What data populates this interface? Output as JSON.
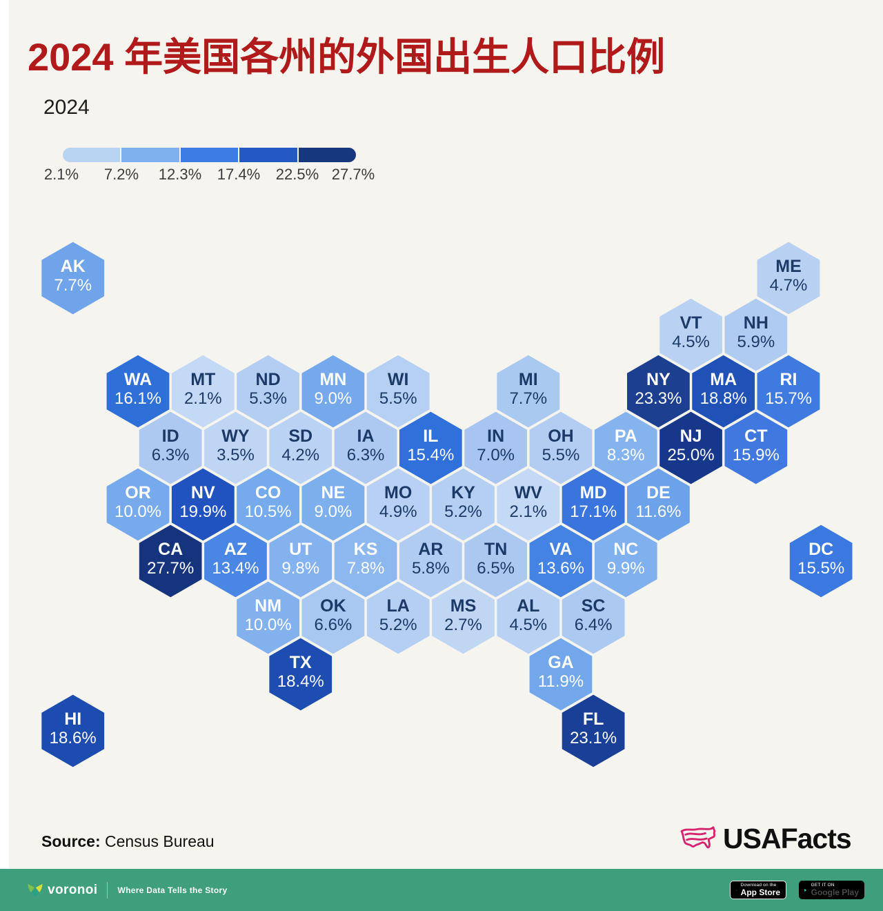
{
  "title": "2024 年美国各州的外国出生人口比例",
  "subtitle": "2024",
  "colors": {
    "background": "#f5f4ee",
    "title_red": "#b01a1a",
    "footer_green": "#3f9f7c",
    "dark_text": "#1b3a68",
    "light_text": "#ffffff",
    "usafacts_pink": "#d6246e"
  },
  "legend": {
    "labels": [
      "2.1%",
      "7.2%",
      "12.3%",
      "17.4%",
      "22.5%",
      "27.7%"
    ],
    "segments": [
      "#b9d3f3",
      "#7fb0ee",
      "#3c7ce3",
      "#2458c2",
      "#17377d"
    ]
  },
  "source": {
    "prefix": "Source:",
    "text": " Census Bureau"
  },
  "brand": {
    "name": "USAFacts"
  },
  "footer": {
    "brand": "voronoi",
    "tagline": "Where Data Tells the Story",
    "appstore_line1": "Download on the",
    "appstore_line2": "App Store",
    "gplay_line1": "GET IT ON",
    "gplay_line2": "Google Play"
  },
  "chart_data": {
    "type": "hexmap",
    "title": "2024 年美国各州的外国出生人口比例",
    "unit": "%",
    "legend_labels": [
      "2.1%",
      "7.2%",
      "12.3%",
      "17.4%",
      "22.5%",
      "27.7%"
    ],
    "states": [
      {
        "abbr": "AK",
        "value": "7.7%",
        "row": 0,
        "col": -1,
        "fill": "#6fa3ea",
        "text": "light"
      },
      {
        "abbr": "ME",
        "value": "4.7%",
        "row": 0,
        "col": 10,
        "fill": "#b8d1f3",
        "text": "dark"
      },
      {
        "abbr": "VT",
        "value": "4.5%",
        "row": 1,
        "col": 8,
        "fill": "#b9d2f3",
        "text": "dark"
      },
      {
        "abbr": "NH",
        "value": "5.9%",
        "row": 1,
        "col": 9,
        "fill": "#b0cbf2",
        "text": "dark"
      },
      {
        "abbr": "WA",
        "value": "16.1%",
        "row": 2,
        "col": 0,
        "fill": "#2e6fd8",
        "text": "light"
      },
      {
        "abbr": "MT",
        "value": "2.1%",
        "row": 2,
        "col": 1,
        "fill": "#c3d9f5",
        "text": "dark"
      },
      {
        "abbr": "ND",
        "value": "5.3%",
        "row": 2,
        "col": 2,
        "fill": "#b4cef2",
        "text": "dark"
      },
      {
        "abbr": "MN",
        "value": "9.0%",
        "row": 2,
        "col": 3,
        "fill": "#76a9ec",
        "text": "light"
      },
      {
        "abbr": "WI",
        "value": "5.5%",
        "row": 2,
        "col": 4,
        "fill": "#b6d0f3",
        "text": "dark"
      },
      {
        "abbr": "MI",
        "value": "7.7%",
        "row": 2,
        "col": 6,
        "fill": "#a9c9f1",
        "text": "dark"
      },
      {
        "abbr": "NY",
        "value": "23.3%",
        "row": 2,
        "col": 8,
        "fill": "#1c3f90",
        "text": "light"
      },
      {
        "abbr": "MA",
        "value": "18.8%",
        "row": 2,
        "col": 9,
        "fill": "#1f51b7",
        "text": "light"
      },
      {
        "abbr": "RI",
        "value": "15.7%",
        "row": 2,
        "col": 10,
        "fill": "#3e7ae0",
        "text": "light"
      },
      {
        "abbr": "ID",
        "value": "6.3%",
        "row": 3,
        "col": 0,
        "fill": "#adc9f1",
        "text": "dark"
      },
      {
        "abbr": "WY",
        "value": "3.5%",
        "row": 3,
        "col": 1,
        "fill": "#bed5f4",
        "text": "dark"
      },
      {
        "abbr": "SD",
        "value": "4.2%",
        "row": 3,
        "col": 2,
        "fill": "#bad2f3",
        "text": "dark"
      },
      {
        "abbr": "IA",
        "value": "6.3%",
        "row": 3,
        "col": 3,
        "fill": "#adc9f1",
        "text": "dark"
      },
      {
        "abbr": "IL",
        "value": "15.4%",
        "row": 3,
        "col": 4,
        "fill": "#2f70da",
        "text": "light"
      },
      {
        "abbr": "IN",
        "value": "7.0%",
        "row": 3,
        "col": 5,
        "fill": "#a7c5f0",
        "text": "dark"
      },
      {
        "abbr": "OH",
        "value": "5.5%",
        "row": 3,
        "col": 6,
        "fill": "#b3cdf2",
        "text": "dark"
      },
      {
        "abbr": "PA",
        "value": "8.3%",
        "row": 3,
        "col": 7,
        "fill": "#85b3ee",
        "text": "light"
      },
      {
        "abbr": "NJ",
        "value": "25.0%",
        "row": 3,
        "col": 8,
        "fill": "#17378a",
        "text": "light"
      },
      {
        "abbr": "CT",
        "value": "15.9%",
        "row": 3,
        "col": 9,
        "fill": "#4078e0",
        "text": "light"
      },
      {
        "abbr": "OR",
        "value": "10.0%",
        "row": 4,
        "col": 0,
        "fill": "#77aaec",
        "text": "light"
      },
      {
        "abbr": "NV",
        "value": "19.9%",
        "row": 4,
        "col": 1,
        "fill": "#2153c0",
        "text": "light"
      },
      {
        "abbr": "CO",
        "value": "10.5%",
        "row": 4,
        "col": 2,
        "fill": "#75aaec",
        "text": "light"
      },
      {
        "abbr": "NE",
        "value": "9.0%",
        "row": 4,
        "col": 3,
        "fill": "#7dafed",
        "text": "light"
      },
      {
        "abbr": "MO",
        "value": "4.9%",
        "row": 4,
        "col": 4,
        "fill": "#b7d0f3",
        "text": "dark"
      },
      {
        "abbr": "KY",
        "value": "5.2%",
        "row": 4,
        "col": 5,
        "fill": "#b5cff2",
        "text": "dark"
      },
      {
        "abbr": "WV",
        "value": "2.1%",
        "row": 4,
        "col": 6,
        "fill": "#c3d9f5",
        "text": "dark"
      },
      {
        "abbr": "MD",
        "value": "17.1%",
        "row": 4,
        "col": 7,
        "fill": "#3a75de",
        "text": "light"
      },
      {
        "abbr": "DE",
        "value": "11.6%",
        "row": 4,
        "col": 8,
        "fill": "#6ba2ea",
        "text": "light"
      },
      {
        "abbr": "CA",
        "value": "27.7%",
        "row": 5,
        "col": 0,
        "fill": "#16347d",
        "text": "light"
      },
      {
        "abbr": "AZ",
        "value": "13.4%",
        "row": 5,
        "col": 1,
        "fill": "#4a86e4",
        "text": "light"
      },
      {
        "abbr": "UT",
        "value": "9.8%",
        "row": 5,
        "col": 2,
        "fill": "#84b2ee",
        "text": "light"
      },
      {
        "abbr": "KS",
        "value": "7.8%",
        "row": 5,
        "col": 3,
        "fill": "#8db8ef",
        "text": "light"
      },
      {
        "abbr": "AR",
        "value": "5.8%",
        "row": 5,
        "col": 4,
        "fill": "#b0ccf2",
        "text": "dark"
      },
      {
        "abbr": "TN",
        "value": "6.5%",
        "row": 5,
        "col": 5,
        "fill": "#abc8f1",
        "text": "dark"
      },
      {
        "abbr": "VA",
        "value": "13.6%",
        "row": 5,
        "col": 6,
        "fill": "#4483e2",
        "text": "light"
      },
      {
        "abbr": "NC",
        "value": "9.9%",
        "row": 5,
        "col": 7,
        "fill": "#80b0ed",
        "text": "light"
      },
      {
        "abbr": "DC",
        "value": "15.5%",
        "row": 5,
        "col": 10,
        "fill": "#3b79e0",
        "text": "light"
      },
      {
        "abbr": "NM",
        "value": "10.0%",
        "row": 6,
        "col": 2,
        "fill": "#82b1ee",
        "text": "light"
      },
      {
        "abbr": "OK",
        "value": "6.6%",
        "row": 6,
        "col": 3,
        "fill": "#a9c8f1",
        "text": "dark"
      },
      {
        "abbr": "LA",
        "value": "5.2%",
        "row": 6,
        "col": 4,
        "fill": "#b5cff2",
        "text": "dark"
      },
      {
        "abbr": "MS",
        "value": "2.7%",
        "row": 6,
        "col": 5,
        "fill": "#c0d7f4",
        "text": "dark"
      },
      {
        "abbr": "AL",
        "value": "4.5%",
        "row": 6,
        "col": 6,
        "fill": "#b9d2f3",
        "text": "dark"
      },
      {
        "abbr": "SC",
        "value": "6.4%",
        "row": 6,
        "col": 7,
        "fill": "#acc9f1",
        "text": "dark"
      },
      {
        "abbr": "TX",
        "value": "18.4%",
        "row": 7,
        "col": 2,
        "fill": "#1d4db1",
        "text": "light"
      },
      {
        "abbr": "GA",
        "value": "11.9%",
        "row": 7,
        "col": 6,
        "fill": "#73a7eb",
        "text": "light"
      },
      {
        "abbr": "HI",
        "value": "18.6%",
        "row": 8,
        "col": -1,
        "fill": "#1d4cb0",
        "text": "light"
      },
      {
        "abbr": "FL",
        "value": "23.1%",
        "row": 8,
        "col": 7,
        "fill": "#1a3f97",
        "text": "light"
      }
    ]
  }
}
